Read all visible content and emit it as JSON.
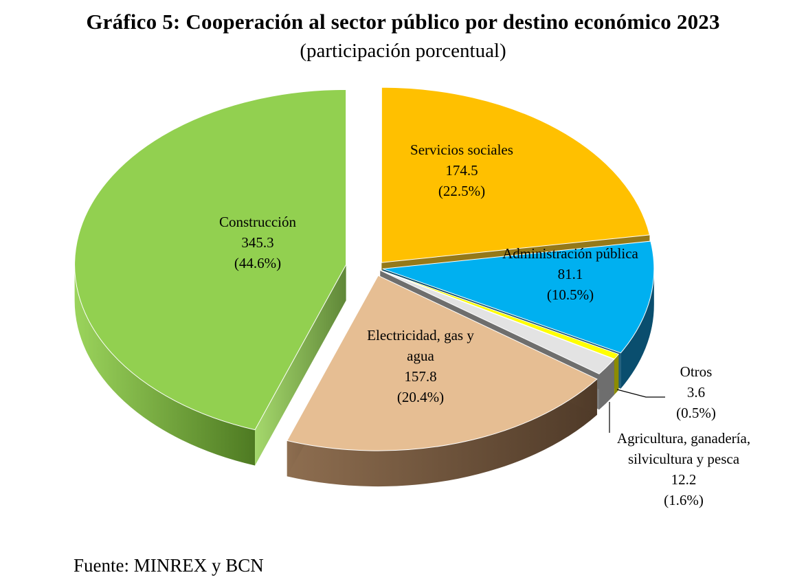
{
  "title": "Gráfico 5: Cooperación al sector público por destino económico 2023",
  "subtitle": "(participación porcentual)",
  "source": "Fuente: MINREX y BCN",
  "chart_data": {
    "type": "pie",
    "style": "3d-exploded",
    "slices": [
      {
        "name": "Servicios sociales",
        "value": "174.5",
        "pct": "(22.5%)",
        "share": 22.5,
        "color": "#FFC000",
        "side": "#8A6A00",
        "label_lines": [
          "Servicios sociales"
        ]
      },
      {
        "name": "Administración pública",
        "value": "81.1",
        "pct": "(10.5%)",
        "share": 10.5,
        "color": "#00B0F0",
        "side": "#0A4E6E",
        "label_lines": [
          "Administración pública"
        ]
      },
      {
        "name": "Otros",
        "value": "3.6",
        "pct": "(0.5%)",
        "share": 0.5,
        "color": "#FFFF00",
        "side": "#8C8C00",
        "label_lines": [
          "Otros"
        ]
      },
      {
        "name": "Agricultura, ganadería, silvicultura y pesca",
        "value": "12.2",
        "pct": "(1.6%)",
        "share": 1.6,
        "color": "#E3E3E3",
        "side": "#6E6E6E",
        "label_lines": [
          "Agricultura, ganadería,",
          "silvicultura y pesca"
        ]
      },
      {
        "name": "Electricidad, gas y agua",
        "value": "157.8",
        "pct": "(20.4%)",
        "share": 20.4,
        "color": "#E6BE93",
        "side": "#5E4631",
        "label_lines": [
          "Electricidad, gas y",
          "agua"
        ]
      },
      {
        "name": "Construcción",
        "value": "345.3",
        "pct": "(44.6%)",
        "share": 44.6,
        "color": "#92D050",
        "side": "#5E8E2E",
        "label_lines": [
          "Construcción"
        ]
      }
    ]
  }
}
